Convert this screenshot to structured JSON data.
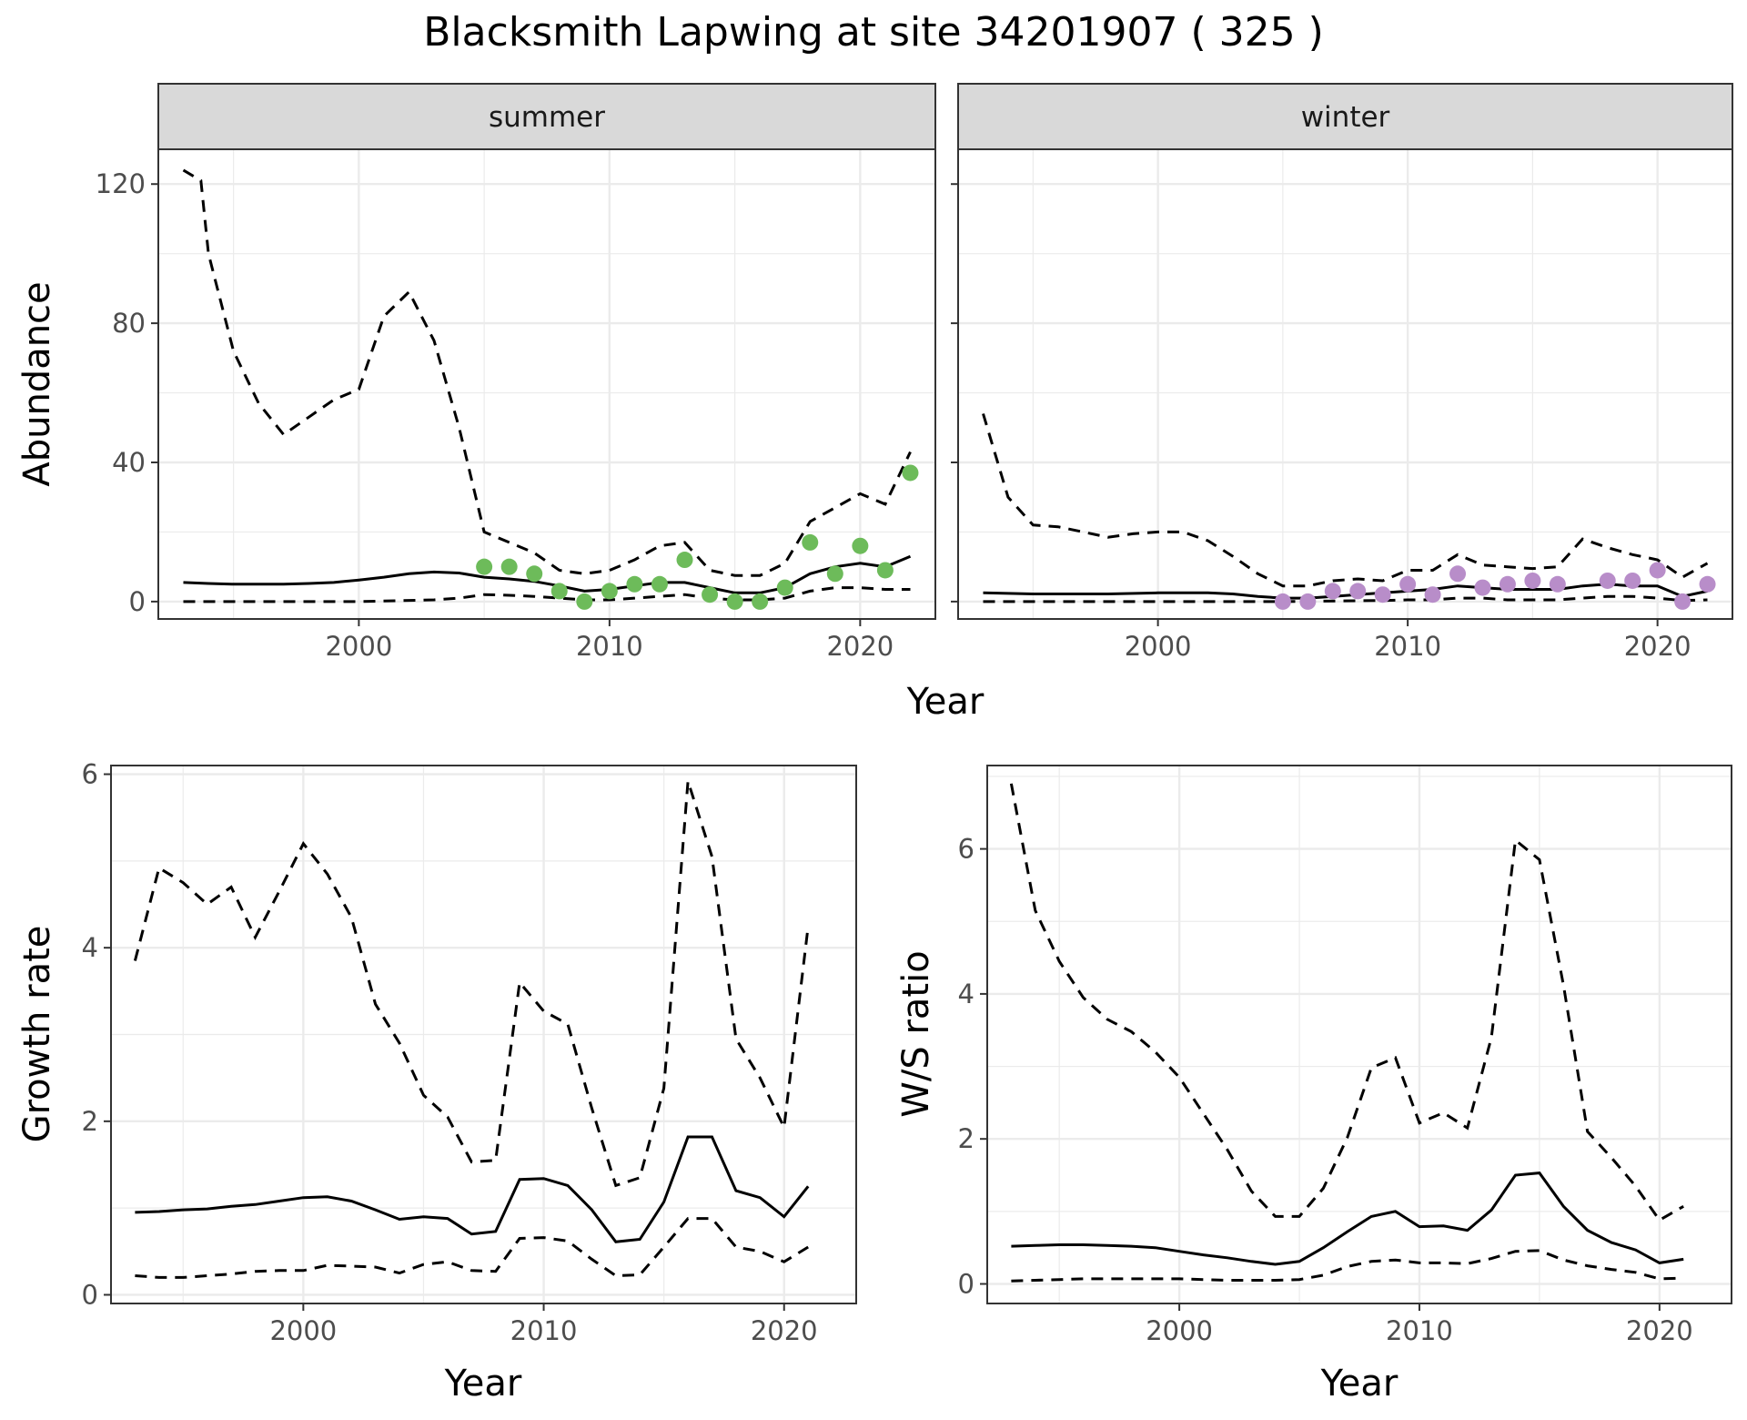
{
  "title": "Blacksmith Lapwing at site 34201907 ( 325 )",
  "chart_data": [
    {
      "id": "abundance-summer",
      "type": "line",
      "facet": "summer",
      "xlabel": "Year",
      "ylabel": "Abundance",
      "xlim": [
        1992,
        2023
      ],
      "ylim": [
        -5,
        130
      ],
      "xticks": [
        2000,
        2010,
        2020
      ],
      "yticks": [
        0,
        40,
        80,
        120
      ],
      "point_color": "#6dbb5a",
      "mean": {
        "x": [
          1993,
          1994,
          1995,
          1996,
          1997,
          1998,
          1999,
          2000,
          2001,
          2002,
          2003,
          2004,
          2005,
          2006,
          2007,
          2008,
          2009,
          2010,
          2011,
          2012,
          2013,
          2014,
          2015,
          2016,
          2017,
          2018,
          2019,
          2020,
          2021,
          2022
        ],
        "y": [
          5.5,
          5.2,
          5.0,
          5.0,
          5.0,
          5.2,
          5.5,
          6.2,
          7.0,
          8.0,
          8.5,
          8.2,
          7.0,
          6.5,
          5.8,
          4.5,
          3.0,
          3.5,
          4.5,
          5.5,
          5.5,
          4.0,
          2.5,
          2.5,
          4.0,
          8.0,
          10.0,
          11.0,
          10.0,
          13.0
        ]
      },
      "upper": {
        "x": [
          1993,
          1993.7,
          1994,
          1995,
          1996,
          1997,
          1998,
          1999,
          2000,
          2001,
          2002,
          2003,
          2004,
          2005,
          2006,
          2007,
          2008,
          2009,
          2010,
          2011,
          2012,
          2013,
          2014,
          2015,
          2016,
          2017,
          2018,
          2019,
          2020,
          2021,
          2022
        ],
        "y": [
          124,
          121,
          100,
          72,
          57,
          48,
          53,
          58,
          61,
          82,
          89,
          75,
          50,
          20,
          17,
          14,
          9,
          8,
          9,
          12,
          16,
          17,
          9,
          7.5,
          7.5,
          11,
          23,
          27,
          31,
          28,
          43
        ]
      },
      "lower": {
        "x": [
          1993,
          1995,
          2000,
          2003,
          2004,
          2005,
          2006,
          2007,
          2008,
          2009,
          2010,
          2011,
          2012,
          2013,
          2014,
          2015,
          2016,
          2017,
          2018,
          2019,
          2020,
          2021,
          2022
        ],
        "y": [
          0,
          0,
          0,
          0.5,
          1,
          2,
          1.8,
          1.5,
          1,
          0.5,
          0.5,
          1,
          1.5,
          2,
          1,
          0.5,
          0.5,
          1,
          3,
          4,
          4,
          3.5,
          3.5
        ]
      },
      "points": {
        "x": [
          2005,
          2006,
          2007,
          2008,
          2009,
          2010,
          2011,
          2012,
          2013,
          2014,
          2015,
          2016,
          2017,
          2018,
          2019,
          2020,
          2021,
          2022
        ],
        "y": [
          10,
          10,
          8,
          3,
          0,
          3,
          5,
          5,
          12,
          2,
          0,
          0,
          4,
          17,
          8,
          16,
          9,
          37
        ]
      }
    },
    {
      "id": "abundance-winter",
      "type": "line",
      "facet": "winter",
      "xlabel": "Year",
      "ylabel": "Abundance",
      "xlim": [
        1992,
        2023
      ],
      "ylim": [
        -5,
        130
      ],
      "xticks": [
        2000,
        2010,
        2020
      ],
      "yticks": [
        0,
        40,
        80,
        120
      ],
      "point_color": "#b88dc9",
      "mean": {
        "x": [
          1993,
          1995,
          1998,
          2000,
          2002,
          2003,
          2004,
          2005,
          2006,
          2007,
          2008,
          2009,
          2010,
          2011,
          2012,
          2013,
          2014,
          2015,
          2016,
          2017,
          2018,
          2019,
          2020,
          2021,
          2022
        ],
        "y": [
          2.5,
          2.2,
          2.2,
          2.5,
          2.5,
          2.2,
          1.5,
          1,
          1,
          1.5,
          2,
          2.5,
          3,
          3.5,
          4.5,
          4,
          3.5,
          3.5,
          3.5,
          4.5,
          5,
          4.5,
          4.5,
          1.5,
          3
        ]
      },
      "upper": {
        "x": [
          1993,
          1994,
          1995,
          1996,
          1997,
          1998,
          1999,
          2000,
          2001,
          2002,
          2003,
          2004,
          2005,
          2006,
          2007,
          2008,
          2009,
          2010,
          2011,
          2012,
          2013,
          2014,
          2015,
          2016,
          2017,
          2018,
          2019,
          2020,
          2021,
          2022
        ],
        "y": [
          54,
          30,
          22,
          21.5,
          20,
          18.5,
          19.5,
          20,
          20,
          17.5,
          13,
          8,
          4.5,
          4.5,
          6,
          6.5,
          6,
          9,
          9,
          13.5,
          10.5,
          10,
          9.5,
          10,
          18,
          15.5,
          13.5,
          12,
          7,
          11
        ]
      },
      "lower": {
        "x": [
          1993,
          2000,
          2005,
          2009,
          2010,
          2011,
          2012,
          2013,
          2014,
          2015,
          2016,
          2017,
          2018,
          2019,
          2020,
          2021,
          2022
        ],
        "y": [
          0,
          0,
          0,
          0.3,
          0.5,
          0.5,
          1,
          1,
          0.5,
          0.5,
          0.5,
          1,
          1.5,
          1.5,
          1,
          0.3,
          0.5
        ]
      },
      "points": {
        "x": [
          2005,
          2006,
          2007,
          2008,
          2009,
          2010,
          2011,
          2012,
          2013,
          2014,
          2015,
          2016,
          2018,
          2019,
          2020,
          2021,
          2022
        ],
        "y": [
          0,
          0,
          3,
          3,
          2,
          5,
          2,
          8,
          4,
          5,
          6,
          5,
          6,
          6,
          9,
          0,
          5
        ]
      }
    },
    {
      "id": "growth-rate",
      "type": "line",
      "xlabel": "Year",
      "ylabel": "Growth rate",
      "xlim": [
        1992,
        2023
      ],
      "ylim": [
        -0.1,
        6.1
      ],
      "xticks": [
        2000,
        2010,
        2020
      ],
      "yticks": [
        0,
        2,
        4,
        6
      ],
      "mean": {
        "x": [
          1993,
          1994,
          1995,
          1996,
          1997,
          1998,
          1999,
          2000,
          2001,
          2002,
          2003,
          2004,
          2005,
          2006,
          2007,
          2008,
          2009,
          2010,
          2011,
          2012,
          2013,
          2014,
          2015,
          2016,
          2017,
          2018,
          2019,
          2020,
          2021
        ],
        "y": [
          0.95,
          0.96,
          0.98,
          0.99,
          1.02,
          1.04,
          1.08,
          1.12,
          1.13,
          1.08,
          0.98,
          0.87,
          0.9,
          0.88,
          0.7,
          0.73,
          1.33,
          1.34,
          1.26,
          0.98,
          0.61,
          0.64,
          1.07,
          1.82,
          1.82,
          1.2,
          1.12,
          0.9,
          1.25
        ]
      },
      "upper": {
        "x": [
          1993,
          1994,
          1995,
          1996,
          1997,
          1998,
          1999,
          2000,
          2001,
          2002,
          2003,
          2004,
          2005,
          2006,
          2007,
          2008,
          2009,
          2010,
          2011,
          2012,
          2013,
          2014,
          2015,
          2016,
          2017,
          2018,
          2019,
          2020,
          2021
        ],
        "y": [
          3.85,
          4.92,
          4.75,
          4.5,
          4.7,
          4.12,
          4.65,
          5.2,
          4.85,
          4.35,
          3.35,
          2.9,
          2.3,
          2.05,
          1.53,
          1.55,
          3.6,
          3.27,
          3.12,
          2.15,
          1.26,
          1.35,
          2.38,
          5.92,
          5.05,
          2.95,
          2.5,
          1.93,
          4.25
        ]
      },
      "lower": {
        "x": [
          1993,
          1994,
          1995,
          1996,
          1997,
          1998,
          1999,
          2000,
          2001,
          2002,
          2003,
          2004,
          2005,
          2006,
          2007,
          2008,
          2009,
          2010,
          2011,
          2012,
          2013,
          2014,
          2015,
          2016,
          2017,
          2018,
          2019,
          2020,
          2021
        ],
        "y": [
          0.22,
          0.2,
          0.2,
          0.22,
          0.24,
          0.27,
          0.28,
          0.28,
          0.34,
          0.33,
          0.32,
          0.25,
          0.35,
          0.38,
          0.28,
          0.27,
          0.65,
          0.66,
          0.62,
          0.41,
          0.22,
          0.23,
          0.55,
          0.88,
          0.88,
          0.55,
          0.5,
          0.38,
          0.55
        ]
      }
    },
    {
      "id": "ws-ratio",
      "type": "line",
      "xlabel": "Year",
      "ylabel": "W/S ratio",
      "xlim": [
        1992,
        2023
      ],
      "ylim": [
        -0.27,
        7.15
      ],
      "xticks": [
        2000,
        2010,
        2020
      ],
      "yticks": [
        0,
        2,
        4,
        6
      ],
      "mean": {
        "x": [
          1993,
          1994,
          1995,
          1996,
          1997,
          1998,
          1999,
          2000,
          2001,
          2002,
          2003,
          2004,
          2005,
          2006,
          2007,
          2008,
          2009,
          2010,
          2011,
          2012,
          2013,
          2014,
          2015,
          2016,
          2017,
          2018,
          2019,
          2020,
          2021
        ],
        "y": [
          0.52,
          0.53,
          0.54,
          0.54,
          0.53,
          0.52,
          0.5,
          0.45,
          0.4,
          0.36,
          0.31,
          0.27,
          0.31,
          0.5,
          0.72,
          0.93,
          1.0,
          0.79,
          0.8,
          0.74,
          1.02,
          1.5,
          1.53,
          1.07,
          0.74,
          0.57,
          0.47,
          0.29,
          0.34
        ]
      },
      "upper": {
        "x": [
          1993,
          1994,
          1995,
          1996,
          1997,
          1998,
          1999,
          2000,
          2001,
          2002,
          2003,
          2004,
          2005,
          2006,
          2007,
          2008,
          2009,
          2010,
          2011,
          2012,
          2013,
          2014,
          2015,
          2016,
          2017,
          2018,
          2019,
          2020,
          2021
        ],
        "y": [
          6.9,
          5.15,
          4.45,
          3.95,
          3.65,
          3.48,
          3.2,
          2.85,
          2.35,
          1.85,
          1.28,
          0.93,
          0.93,
          1.32,
          2.02,
          2.98,
          3.12,
          2.22,
          2.36,
          2.15,
          3.4,
          6.12,
          5.85,
          4.12,
          2.1,
          1.74,
          1.35,
          0.88,
          1.07
        ]
      },
      "lower": {
        "x": [
          1993,
          1994,
          1995,
          1996,
          1997,
          1998,
          1999,
          2000,
          2001,
          2002,
          2003,
          2004,
          2005,
          2006,
          2007,
          2008,
          2009,
          2010,
          2011,
          2012,
          2013,
          2014,
          2015,
          2016,
          2017,
          2018,
          2019,
          2020,
          2021
        ],
        "y": [
          0.04,
          0.05,
          0.06,
          0.07,
          0.07,
          0.07,
          0.07,
          0.07,
          0.06,
          0.05,
          0.05,
          0.05,
          0.06,
          0.12,
          0.24,
          0.31,
          0.33,
          0.29,
          0.29,
          0.28,
          0.35,
          0.45,
          0.46,
          0.33,
          0.25,
          0.2,
          0.16,
          0.07,
          0.08
        ]
      }
    }
  ]
}
